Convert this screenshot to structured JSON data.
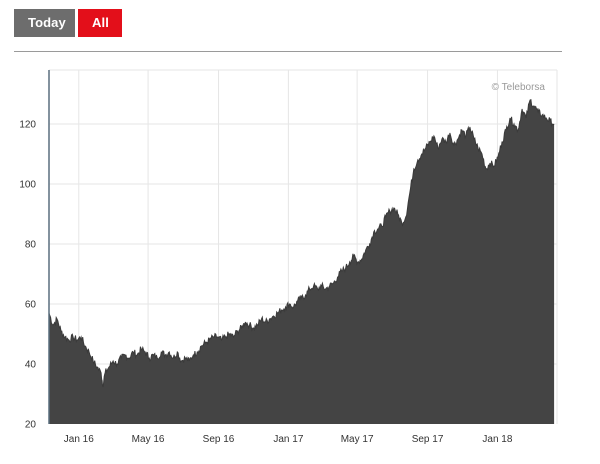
{
  "tabs": {
    "today_label": "Today",
    "all_label": "All"
  },
  "chart_data": {
    "type": "area",
    "credit": "© Teleborsa",
    "ylim": [
      20,
      138
    ],
    "xlim": [
      "2015-11-10",
      "2018-04-15"
    ],
    "grid": true,
    "y_ticks": [
      {
        "value": 20,
        "label": "20"
      },
      {
        "value": 40,
        "label": "40"
      },
      {
        "value": 60,
        "label": "60"
      },
      {
        "value": 80,
        "label": "80"
      },
      {
        "value": 100,
        "label": "100"
      },
      {
        "value": 120,
        "label": "120"
      }
    ],
    "x_ticks": [
      {
        "value": "2016-01-01",
        "label": "Jan 16"
      },
      {
        "value": "2016-05-01",
        "label": "May 16"
      },
      {
        "value": "2016-09-01",
        "label": "Sep 16"
      },
      {
        "value": "2017-01-01",
        "label": "Jan 17"
      },
      {
        "value": "2017-05-01",
        "label": "May 17"
      },
      {
        "value": "2017-09-01",
        "label": "Sep 17"
      },
      {
        "value": "2018-01-01",
        "label": "Jan 18"
      }
    ],
    "series": [
      {
        "color": "#444444",
        "points": [
          [
            "2015-11-10",
            57
          ],
          [
            "2015-11-17",
            53
          ],
          [
            "2015-11-24",
            55
          ],
          [
            "2015-12-01",
            51
          ],
          [
            "2015-12-08",
            49
          ],
          [
            "2015-12-15",
            48
          ],
          [
            "2015-12-22",
            49
          ],
          [
            "2015-12-29",
            48
          ],
          [
            "2016-01-05",
            49
          ],
          [
            "2016-01-12",
            46
          ],
          [
            "2016-01-19",
            44
          ],
          [
            "2016-01-26",
            41
          ],
          [
            "2016-02-02",
            39
          ],
          [
            "2016-02-09",
            37
          ],
          [
            "2016-02-12",
            33
          ],
          [
            "2016-02-16",
            37
          ],
          [
            "2016-02-23",
            39
          ],
          [
            "2016-03-01",
            41
          ],
          [
            "2016-03-08",
            40
          ],
          [
            "2016-03-15",
            42
          ],
          [
            "2016-03-22",
            43
          ],
          [
            "2016-03-29",
            42
          ],
          [
            "2016-04-05",
            44
          ],
          [
            "2016-04-12",
            43
          ],
          [
            "2016-04-19",
            45
          ],
          [
            "2016-04-26",
            44
          ],
          [
            "2016-05-03",
            42
          ],
          [
            "2016-05-10",
            43
          ],
          [
            "2016-05-17",
            42
          ],
          [
            "2016-05-24",
            44
          ],
          [
            "2016-05-31",
            43
          ],
          [
            "2016-06-07",
            44
          ],
          [
            "2016-06-14",
            42
          ],
          [
            "2016-06-21",
            44
          ],
          [
            "2016-06-28",
            41
          ],
          [
            "2016-07-05",
            42
          ],
          [
            "2016-07-12",
            41
          ],
          [
            "2016-07-19",
            43
          ],
          [
            "2016-07-26",
            44
          ],
          [
            "2016-08-02",
            46
          ],
          [
            "2016-08-09",
            47
          ],
          [
            "2016-08-16",
            48
          ],
          [
            "2016-08-23",
            49
          ],
          [
            "2016-08-30",
            49
          ],
          [
            "2016-09-06",
            48
          ],
          [
            "2016-09-13",
            49
          ],
          [
            "2016-09-20",
            50
          ],
          [
            "2016-09-27",
            49
          ],
          [
            "2016-10-04",
            51
          ],
          [
            "2016-10-11",
            52
          ],
          [
            "2016-10-18",
            54
          ],
          [
            "2016-10-25",
            53
          ],
          [
            "2016-11-01",
            52
          ],
          [
            "2016-11-08",
            53
          ],
          [
            "2016-11-15",
            55
          ],
          [
            "2016-11-22",
            54
          ],
          [
            "2016-11-29",
            55
          ],
          [
            "2016-12-06",
            56
          ],
          [
            "2016-12-13",
            57
          ],
          [
            "2016-12-20",
            58
          ],
          [
            "2016-12-27",
            59
          ],
          [
            "2017-01-03",
            60
          ],
          [
            "2017-01-10",
            59
          ],
          [
            "2017-01-17",
            61
          ],
          [
            "2017-01-24",
            62
          ],
          [
            "2017-01-31",
            63
          ],
          [
            "2017-02-07",
            65
          ],
          [
            "2017-02-14",
            66
          ],
          [
            "2017-02-21",
            65
          ],
          [
            "2017-02-28",
            66
          ],
          [
            "2017-03-07",
            65
          ],
          [
            "2017-03-14",
            66
          ],
          [
            "2017-03-21",
            67
          ],
          [
            "2017-03-28",
            69
          ],
          [
            "2017-04-04",
            71
          ],
          [
            "2017-04-11",
            72
          ],
          [
            "2017-04-18",
            74
          ],
          [
            "2017-04-25",
            76
          ],
          [
            "2017-05-02",
            74
          ],
          [
            "2017-05-09",
            75
          ],
          [
            "2017-05-16",
            78
          ],
          [
            "2017-05-23",
            80
          ],
          [
            "2017-05-30",
            84
          ],
          [
            "2017-06-06",
            85
          ],
          [
            "2017-06-13",
            86
          ],
          [
            "2017-06-20",
            89
          ],
          [
            "2017-06-27",
            91
          ],
          [
            "2017-07-04",
            92
          ],
          [
            "2017-07-11",
            90
          ],
          [
            "2017-07-18",
            87
          ],
          [
            "2017-07-25",
            89
          ],
          [
            "2017-08-01",
            97
          ],
          [
            "2017-08-08",
            105
          ],
          [
            "2017-08-15",
            108
          ],
          [
            "2017-08-22",
            110
          ],
          [
            "2017-08-29",
            112
          ],
          [
            "2017-09-05",
            114
          ],
          [
            "2017-09-12",
            116
          ],
          [
            "2017-09-19",
            112
          ],
          [
            "2017-09-26",
            115
          ],
          [
            "2017-10-03",
            114
          ],
          [
            "2017-10-10",
            117
          ],
          [
            "2017-10-17",
            113
          ],
          [
            "2017-10-24",
            115
          ],
          [
            "2017-10-31",
            118
          ],
          [
            "2017-11-07",
            116
          ],
          [
            "2017-11-14",
            119
          ],
          [
            "2017-11-21",
            115
          ],
          [
            "2017-11-28",
            112
          ],
          [
            "2017-12-05",
            110
          ],
          [
            "2017-12-12",
            105
          ],
          [
            "2017-12-19",
            107
          ],
          [
            "2017-12-26",
            106
          ],
          [
            "2018-01-02",
            109
          ],
          [
            "2018-01-09",
            114
          ],
          [
            "2018-01-16",
            118
          ],
          [
            "2018-01-23",
            122
          ],
          [
            "2018-01-30",
            120
          ],
          [
            "2018-02-06",
            118
          ],
          [
            "2018-02-13",
            125
          ],
          [
            "2018-02-20",
            122
          ],
          [
            "2018-02-27",
            128
          ],
          [
            "2018-03-06",
            126
          ],
          [
            "2018-03-13",
            124
          ],
          [
            "2018-03-20",
            123
          ],
          [
            "2018-03-27",
            122
          ],
          [
            "2018-04-03",
            121
          ],
          [
            "2018-04-10",
            120
          ]
        ]
      }
    ]
  }
}
